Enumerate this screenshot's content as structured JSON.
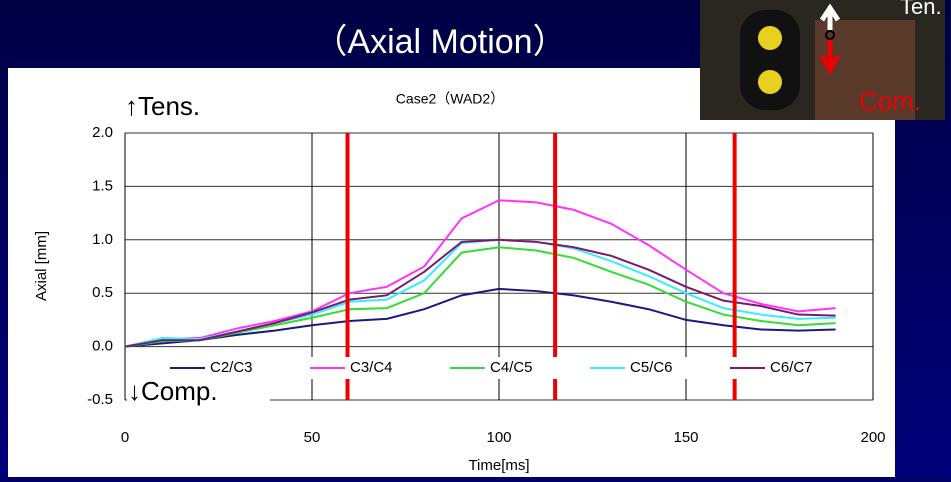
{
  "slide_title": "（Axial Motion）",
  "photo": {
    "top_label": "Ten.",
    "bottom_label": "Com."
  },
  "chart_data": {
    "type": "line",
    "title": "Case2（WAD2）",
    "x_label": "Time[ms]",
    "y_label": "Axial [mm]",
    "annotations": {
      "top": "↑Tens.",
      "bottom": "↓Comp."
    },
    "x": [
      0,
      10,
      20,
      30,
      40,
      50,
      60,
      70,
      80,
      90,
      100,
      110,
      120,
      130,
      140,
      150,
      160,
      170,
      180,
      190
    ],
    "series": [
      {
        "name": "C2/C3",
        "color": "#1a1a80",
        "values": [
          0,
          0.03,
          0.06,
          0.11,
          0.15,
          0.2,
          0.24,
          0.26,
          0.35,
          0.48,
          0.54,
          0.52,
          0.48,
          0.42,
          0.35,
          0.25,
          0.2,
          0.16,
          0.15,
          0.16
        ]
      },
      {
        "name": "C3/C4",
        "color": "#ff33ff",
        "values": [
          0,
          0.07,
          0.08,
          0.17,
          0.24,
          0.33,
          0.5,
          0.56,
          0.75,
          1.2,
          1.37,
          1.35,
          1.28,
          1.15,
          0.95,
          0.72,
          0.5,
          0.4,
          0.33,
          0.36
        ]
      },
      {
        "name": "C4/C5",
        "color": "#33dd33",
        "values": [
          0,
          0.05,
          0.06,
          0.13,
          0.2,
          0.27,
          0.35,
          0.36,
          0.5,
          0.88,
          0.93,
          0.9,
          0.83,
          0.7,
          0.58,
          0.42,
          0.3,
          0.24,
          0.2,
          0.22
        ]
      },
      {
        "name": "C5/C6",
        "color": "#33eeff",
        "values": [
          0,
          0.08,
          0.07,
          0.14,
          0.22,
          0.3,
          0.42,
          0.44,
          0.62,
          0.97,
          1.0,
          0.98,
          0.92,
          0.8,
          0.66,
          0.5,
          0.36,
          0.3,
          0.26,
          0.27
        ]
      },
      {
        "name": "C6/C7",
        "color": "#7a1a6a",
        "values": [
          0,
          0.06,
          0.06,
          0.14,
          0.22,
          0.32,
          0.44,
          0.48,
          0.7,
          0.98,
          1.0,
          0.98,
          0.93,
          0.85,
          0.72,
          0.56,
          0.43,
          0.38,
          0.3,
          0.29
        ]
      }
    ],
    "markers": [
      59.5,
      115,
      163
    ],
    "marker_color": "#ee0000",
    "xlim": [
      0,
      200
    ],
    "xticks": [
      0,
      50,
      100,
      150,
      200
    ],
    "ylim": [
      -0.5,
      2.0
    ],
    "yticks": [
      -0.5,
      {
        "value": 0,
        "label": "0.0"
      },
      0.5,
      {
        "value": 1,
        "label": "1.0"
      },
      1.5,
      {
        "value": 2,
        "label": "2.0"
      }
    ],
    "grid": true
  }
}
